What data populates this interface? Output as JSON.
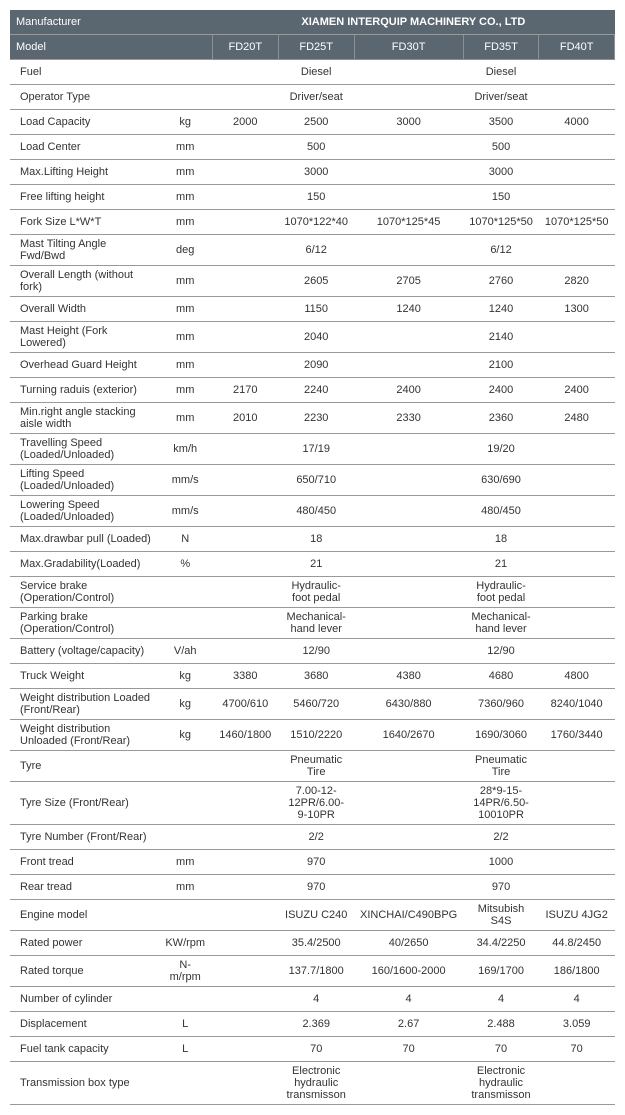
{
  "header": {
    "manufacturer_label": "Manufacturer",
    "manufacturer_value": "XIAMEN INTERQUIP MACHINERY CO., LTD",
    "model_label": "Model"
  },
  "models": [
    "FD20T",
    "FD25T",
    "FD30T",
    "FD35T",
    "FD40T"
  ],
  "rows": [
    {
      "label": "Fuel",
      "unit": "",
      "vals": [
        "",
        "Diesel",
        "",
        "Diesel",
        ""
      ]
    },
    {
      "label": "Operator Type",
      "unit": "",
      "vals": [
        "",
        "Driver/seat",
        "",
        "Driver/seat",
        ""
      ]
    },
    {
      "label": "Load Capacity",
      "unit": "kg",
      "vals": [
        "2000",
        "2500",
        "3000",
        "3500",
        "4000"
      ]
    },
    {
      "label": "Load Center",
      "unit": "mm",
      "vals": [
        "",
        "500",
        "",
        "500",
        ""
      ]
    },
    {
      "label": "Max.Lifting Height",
      "unit": "mm",
      "vals": [
        "",
        "3000",
        "",
        "3000",
        ""
      ]
    },
    {
      "label": "Free lifting height",
      "unit": "mm",
      "vals": [
        "",
        "150",
        "",
        "150",
        ""
      ]
    },
    {
      "label": "Fork Size  L*W*T",
      "unit": "mm",
      "vals": [
        "",
        "1070*122*40",
        "1070*125*45",
        "1070*125*50",
        "1070*125*50"
      ]
    },
    {
      "label": "Mast Tilting Angle  Fwd/Bwd",
      "unit": "deg",
      "vals": [
        "",
        "6/12",
        "",
        "6/12",
        ""
      ]
    },
    {
      "label": "Overall Length (without fork)",
      "unit": "mm",
      "vals": [
        "",
        "2605",
        "2705",
        "2760",
        "2820"
      ]
    },
    {
      "label": "Overall Width",
      "unit": "mm",
      "vals": [
        "",
        "1150",
        "1240",
        "1240",
        "1300"
      ]
    },
    {
      "label": "Mast Height (Fork Lowered)",
      "unit": "mm",
      "vals": [
        "",
        "2040",
        "",
        "2140",
        ""
      ]
    },
    {
      "label": "Overhead Guard Height",
      "unit": "mm",
      "vals": [
        "",
        "2090",
        "",
        "2100",
        ""
      ]
    },
    {
      "label": "Turning raduis (exterior)",
      "unit": "mm",
      "vals": [
        "2170",
        "2240",
        "2400",
        "2400",
        "2400"
      ]
    },
    {
      "label": "Min.right angle stacking aisle width",
      "unit": "mm",
      "vals": [
        "2010",
        "2230",
        "2330",
        "2360",
        "2480"
      ]
    },
    {
      "label": "Travelling Speed (Loaded/Unloaded)",
      "unit": "km/h",
      "vals": [
        "",
        "17/19",
        "",
        "19/20",
        ""
      ]
    },
    {
      "label": "Lifting Speed (Loaded/Unloaded)",
      "unit": "mm/s",
      "vals": [
        "",
        "650/710",
        "",
        "630/690",
        ""
      ]
    },
    {
      "label": "Lowering Speed (Loaded/Unloaded)",
      "unit": "mm/s",
      "vals": [
        "",
        "480/450",
        "",
        "480/450",
        ""
      ]
    },
    {
      "label": "Max.drawbar pull (Loaded)",
      "unit": "N",
      "vals": [
        "",
        "18",
        "",
        "18",
        ""
      ]
    },
    {
      "label": "Max.Gradability(Loaded)",
      "unit": "%",
      "vals": [
        "",
        "21",
        "",
        "21",
        ""
      ]
    },
    {
      "label": "Service brake (Operation/Control)",
      "unit": "",
      "vals": [
        "",
        "Hydraulic-foot pedal",
        "",
        "Hydraulic-foot pedal",
        ""
      ]
    },
    {
      "label": "Parking brake (Operation/Control)",
      "unit": "",
      "vals": [
        "",
        "Mechanical-hand lever",
        "",
        "Mechanical-hand lever",
        ""
      ]
    },
    {
      "label": "Battery (voltage/capacity)",
      "unit": "V/ah",
      "vals": [
        "",
        "12/90",
        "",
        "12/90",
        ""
      ]
    },
    {
      "label": "Truck Weight",
      "unit": "kg",
      "vals": [
        "3380",
        "3680",
        "4380",
        "4680",
        "4800"
      ]
    },
    {
      "label": "Weight distribution Loaded (Front/Rear)",
      "unit": "kg",
      "vals": [
        "4700/610",
        "5460/720",
        "6430/880",
        "7360/960",
        "8240/1040"
      ]
    },
    {
      "label": "Weight distribution Unloaded (Front/Rear)",
      "unit": "kg",
      "vals": [
        "1460/1800",
        "1510/2220",
        "1640/2670",
        "1690/3060",
        "1760/3440"
      ]
    },
    {
      "label": "Tyre",
      "unit": "",
      "vals": [
        "",
        "Pneumatic Tire",
        "",
        "Pneumatic Tire",
        ""
      ]
    },
    {
      "label": "Tyre Size  (Front/Rear)",
      "unit": "",
      "vals": [
        "",
        "7.00-12-12PR/6.00-9-10PR",
        "",
        "28*9-15-14PR/6.50-10010PR",
        ""
      ]
    },
    {
      "label": "Tyre Number  (Front/Rear)",
      "unit": "",
      "vals": [
        "",
        "2/2",
        "",
        "2/2",
        ""
      ]
    },
    {
      "label": "Front tread",
      "unit": "mm",
      "vals": [
        "",
        "970",
        "",
        "1000",
        ""
      ]
    },
    {
      "label": "Rear tread",
      "unit": "mm",
      "vals": [
        "",
        "970",
        "",
        "970",
        ""
      ]
    },
    {
      "label": "Engine model",
      "unit": "",
      "vals": [
        "",
        "ISUZU C240",
        "XINCHAI/C490BPG",
        "Mitsubish S4S",
        "ISUZU 4JG2"
      ]
    },
    {
      "label": "Rated power",
      "unit": "KW/rpm",
      "vals": [
        "",
        "35.4/2500",
        "40/2650",
        "34.4/2250",
        "44.8/2450"
      ]
    },
    {
      "label": "Rated torque",
      "unit": "N-m/rpm",
      "vals": [
        "",
        "137.7/1800",
        "160/1600-2000",
        "169/1700",
        "186/1800"
      ]
    },
    {
      "label": "Number of cylinder",
      "unit": "",
      "vals": [
        "",
        "4",
        "4",
        "4",
        "4"
      ]
    },
    {
      "label": "Displacement",
      "unit": "L",
      "vals": [
        "",
        "2.369",
        "2.67",
        "2.488",
        "3.059"
      ]
    },
    {
      "label": "Fuel tank capacity",
      "unit": "L",
      "vals": [
        "",
        "70",
        "70",
        "70",
        "70"
      ]
    },
    {
      "label": "Transmission box type",
      "unit": "",
      "vals": [
        "",
        "Electronic hydraulic transmisson",
        "",
        "Electronic hydraulic transmisson",
        ""
      ]
    }
  ]
}
